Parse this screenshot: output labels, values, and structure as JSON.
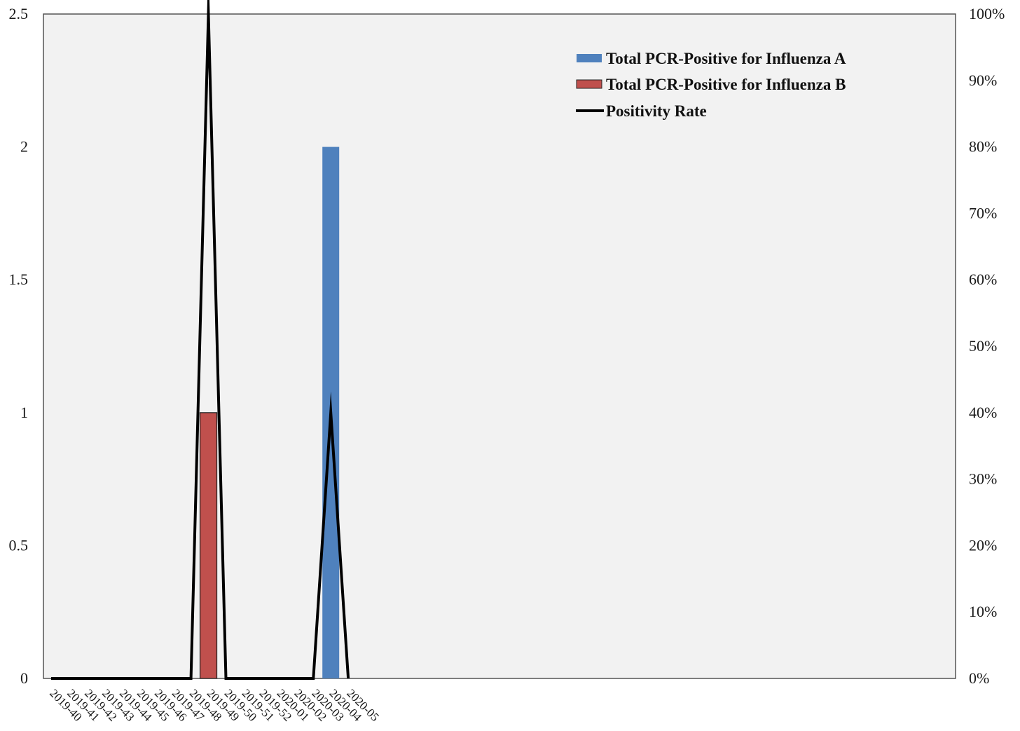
{
  "chart_data": {
    "type": "bar",
    "categories": [
      "2019-40",
      "2019-41",
      "2019-42",
      "2019-43",
      "2019-44",
      "2019-45",
      "2019-46",
      "2019-47",
      "2019-48",
      "2019-49",
      "2019-50",
      "2019-51",
      "2019-52",
      "2020-01",
      "2020-02",
      "2020-03",
      "2020-04",
      "2020-05"
    ],
    "series": [
      {
        "name": "Total PCR-Positive for Influenza A",
        "kind": "bar",
        "axis": "left",
        "color": "#4f81bd",
        "values": [
          0,
          0,
          0,
          0,
          0,
          0,
          0,
          0,
          0,
          0,
          0,
          0,
          0,
          0,
          0,
          0,
          2,
          0
        ]
      },
      {
        "name": "Total PCR-Positive for Influenza B",
        "kind": "bar",
        "axis": "left",
        "color": "#c0504d",
        "values": [
          0,
          0,
          0,
          0,
          0,
          0,
          0,
          0,
          0,
          1,
          0,
          0,
          0,
          0,
          0,
          0,
          0,
          0
        ]
      },
      {
        "name": "Positivity Rate",
        "kind": "line",
        "axis": "right",
        "color": "#000000",
        "values": [
          0,
          0,
          0,
          0,
          0,
          0,
          0,
          0,
          0,
          1.0,
          0,
          0,
          0,
          0,
          0,
          0,
          0.4,
          0
        ]
      }
    ],
    "ylim": [
      0,
      2.5
    ],
    "y_ticks": [
      "0",
      "0.5",
      "1",
      "1.5",
      "2",
      "2.5"
    ],
    "y2lim": [
      0,
      1
    ],
    "y2_ticks": [
      "0%",
      "10%",
      "20%",
      "30%",
      "40%",
      "50%",
      "60%",
      "70%",
      "80%",
      "90%",
      "100%"
    ],
    "grid": false,
    "legend_position": "top-right",
    "plot_background": "#f2f2f2"
  }
}
